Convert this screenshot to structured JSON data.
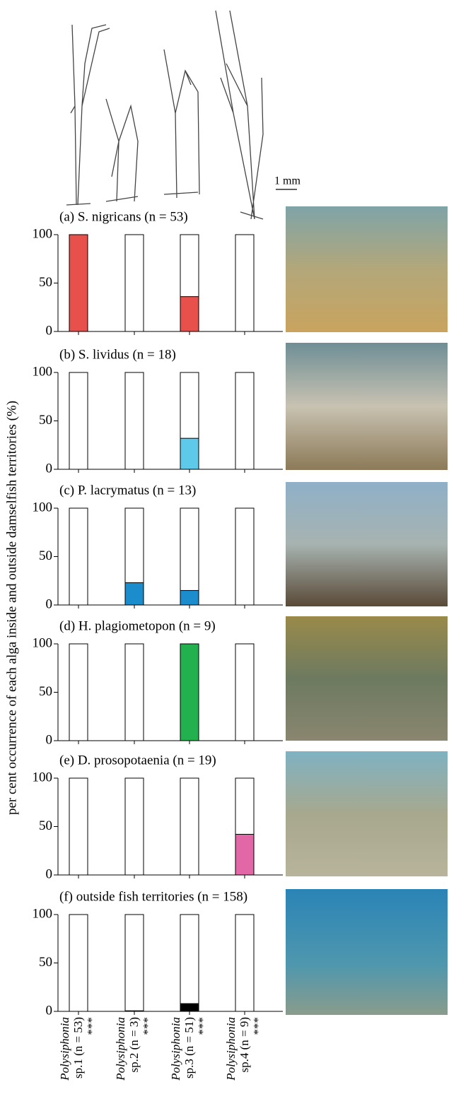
{
  "y_label": "per cent occurrence of each alga inside and outside damselfish territories (%)",
  "scale_label": "1 mm",
  "chart_data": [
    {
      "type": "bar",
      "title": "(a) S. nigricans (n = 53)",
      "values": [
        100,
        0,
        36,
        0
      ],
      "color": "#e8514b",
      "ylim": [
        0,
        100
      ],
      "yticks": [
        0,
        50,
        100
      ]
    },
    {
      "type": "bar",
      "title": "(b) S. lividus (n = 18)",
      "values": [
        0,
        0,
        32,
        0
      ],
      "color": "#5fc9e9",
      "ylim": [
        0,
        100
      ],
      "yticks": [
        0,
        50,
        100
      ]
    },
    {
      "type": "bar",
      "title": "(c) P. lacrymatus (n = 13)",
      "values": [
        0,
        23,
        15,
        0
      ],
      "color": "#1b8dcd",
      "ylim": [
        0,
        100
      ],
      "yticks": [
        0,
        50,
        100
      ]
    },
    {
      "type": "bar",
      "title": "(d) H. plagiometopon (n = 9)",
      "values": [
        0,
        0,
        100,
        0
      ],
      "color": "#23b150",
      "ylim": [
        0,
        100
      ],
      "yticks": [
        0,
        50,
        100
      ]
    },
    {
      "type": "bar",
      "title": "(e) D. prosopotaenia (n = 19)",
      "values": [
        0,
        0,
        0,
        42
      ],
      "color": "#e167a7",
      "ylim": [
        0,
        100
      ],
      "yticks": [
        0,
        50,
        100
      ]
    },
    {
      "type": "bar",
      "title": "(f) outside fish territories (n = 158)",
      "values": [
        0,
        0.6,
        8,
        0
      ],
      "color": "#000000",
      "ylim": [
        0,
        100
      ],
      "yticks": [
        0,
        50,
        100
      ],
      "categories": [
        "Polysiphonia sp.1 (n = 53)",
        "Polysiphonia sp.2 (n = 3)",
        "Polysiphonia sp.3 (n = 51)",
        "Polysiphonia sp.4 (n = 9)"
      ],
      "annotations": [
        "***",
        "***",
        "***",
        "***"
      ]
    }
  ]
}
